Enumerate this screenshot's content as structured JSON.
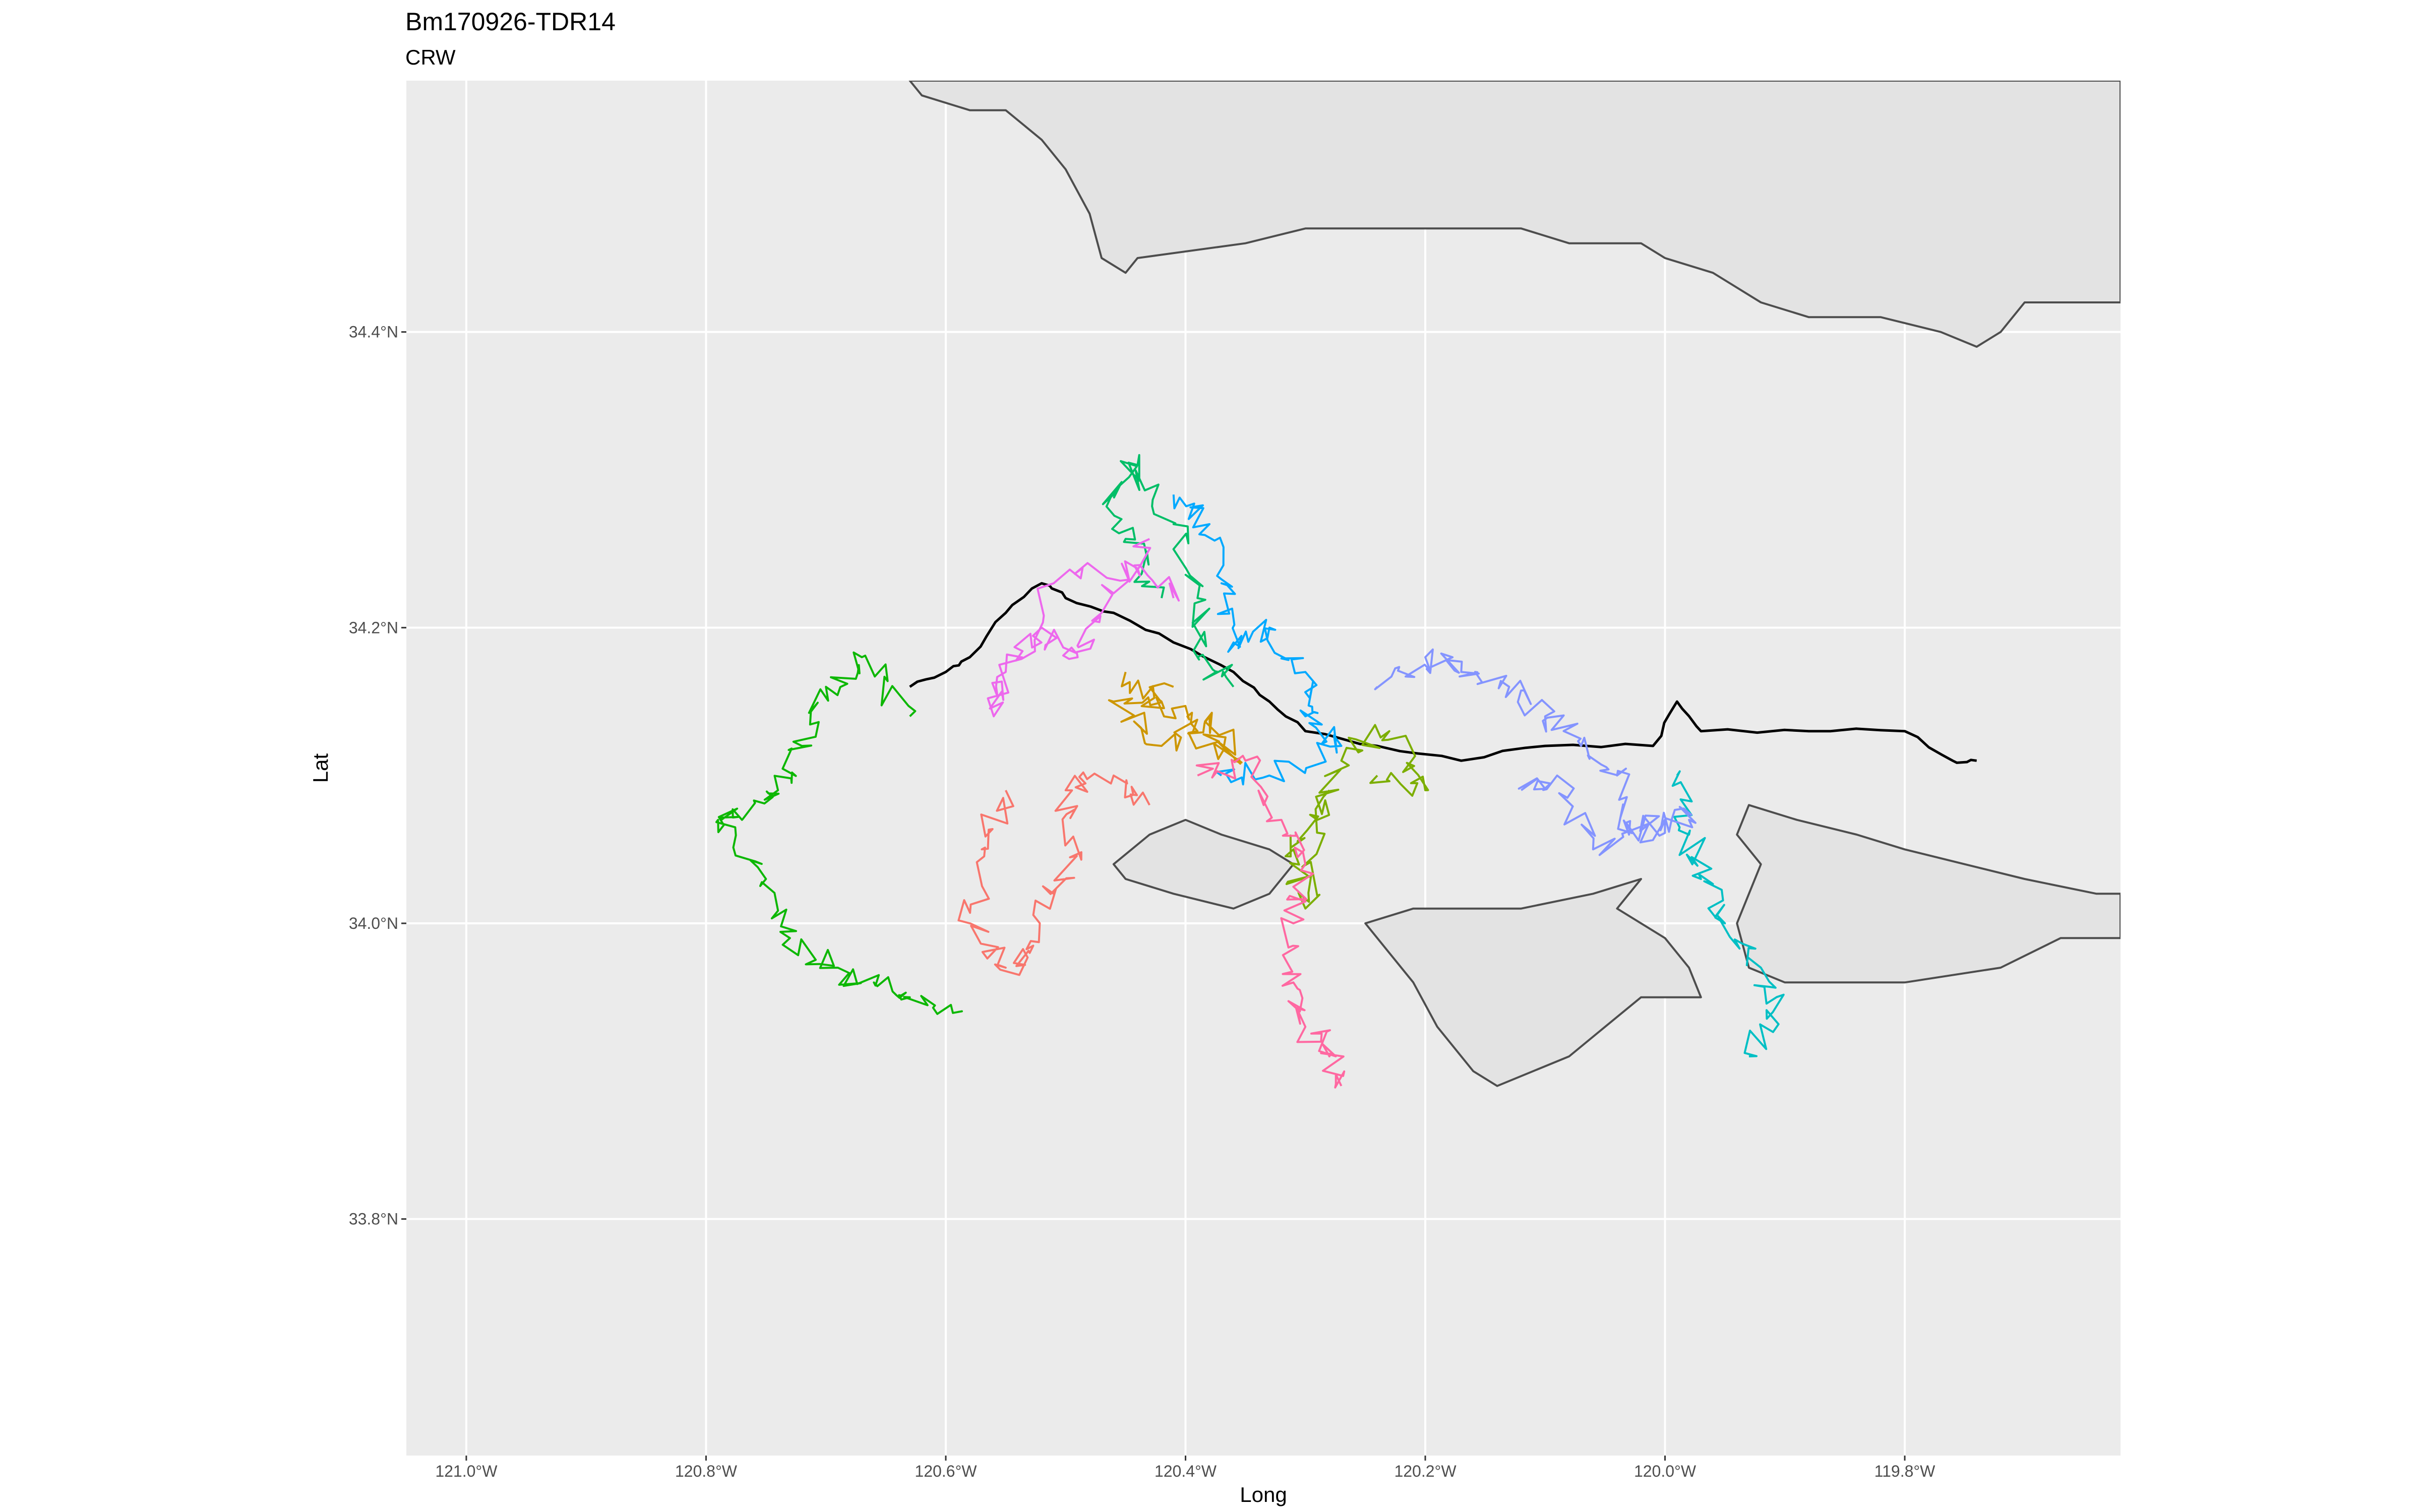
{
  "chart_data": {
    "type": "line",
    "title": "Bm170926-TDR14",
    "subtitle": "CRW",
    "xlabel": "Long",
    "ylabel": "Lat",
    "xlim": [
      -121.05,
      -119.62
    ],
    "ylim": [
      33.64,
      34.57
    ],
    "grid": true,
    "legend": "none",
    "x_ticks": [
      {
        "value": -121.0,
        "label": "121.0°W"
      },
      {
        "value": -120.8,
        "label": "120.8°W"
      },
      {
        "value": -120.6,
        "label": "120.6°W"
      },
      {
        "value": -120.4,
        "label": "120.4°W"
      },
      {
        "value": -120.2,
        "label": "120.2°W"
      },
      {
        "value": -120.0,
        "label": "120.0°W"
      },
      {
        "value": -119.8,
        "label": "119.8°W"
      }
    ],
    "y_ticks": [
      {
        "value": 33.8,
        "label": "33.8°N"
      },
      {
        "value": 34.0,
        "label": "34.0°N"
      },
      {
        "value": 34.2,
        "label": "34.2°N"
      },
      {
        "value": 34.4,
        "label": "34.4°N"
      }
    ],
    "colors": {
      "panel": "#ebebeb",
      "grid": "#ffffff",
      "land_fill": "#e3e3e3",
      "land_stroke": "#4d4d4d",
      "observed_track": "#000000"
    },
    "land": [
      {
        "name": "mainland",
        "points": [
          [
            -120.63,
            34.57
          ],
          [
            -120.62,
            34.56
          ],
          [
            -120.58,
            34.55
          ],
          [
            -120.55,
            34.55
          ],
          [
            -120.52,
            34.53
          ],
          [
            -120.5,
            34.51
          ],
          [
            -120.48,
            34.48
          ],
          [
            -120.47,
            34.45
          ],
          [
            -120.45,
            34.44
          ],
          [
            -120.44,
            34.45
          ],
          [
            -120.35,
            34.46
          ],
          [
            -120.3,
            34.47
          ],
          [
            -120.2,
            34.47
          ],
          [
            -120.12,
            34.47
          ],
          [
            -120.08,
            34.46
          ],
          [
            -120.04,
            34.46
          ],
          [
            -120.02,
            34.46
          ],
          [
            -120.0,
            34.45
          ],
          [
            -119.96,
            34.44
          ],
          [
            -119.92,
            34.42
          ],
          [
            -119.88,
            34.41
          ],
          [
            -119.85,
            34.41
          ],
          [
            -119.82,
            34.41
          ],
          [
            -119.77,
            34.4
          ],
          [
            -119.74,
            34.39
          ],
          [
            -119.72,
            34.4
          ],
          [
            -119.7,
            34.42
          ],
          [
            -119.65,
            34.42
          ],
          [
            -119.62,
            34.42
          ],
          [
            -119.62,
            34.57
          ]
        ]
      },
      {
        "name": "san-miguel-island",
        "points": [
          [
            -120.46,
            34.04
          ],
          [
            -120.43,
            34.06
          ],
          [
            -120.4,
            34.07
          ],
          [
            -120.37,
            34.06
          ],
          [
            -120.33,
            34.05
          ],
          [
            -120.31,
            34.04
          ],
          [
            -120.33,
            34.02
          ],
          [
            -120.36,
            34.01
          ],
          [
            -120.41,
            34.02
          ],
          [
            -120.45,
            34.03
          ]
        ]
      },
      {
        "name": "santa-rosa-island",
        "points": [
          [
            -120.25,
            34.0
          ],
          [
            -120.21,
            34.01
          ],
          [
            -120.12,
            34.01
          ],
          [
            -120.06,
            34.02
          ],
          [
            -120.02,
            34.03
          ],
          [
            -120.04,
            34.01
          ],
          [
            -120.0,
            33.99
          ],
          [
            -119.98,
            33.97
          ],
          [
            -119.97,
            33.95
          ],
          [
            -120.02,
            33.95
          ],
          [
            -120.05,
            33.93
          ],
          [
            -120.08,
            33.91
          ],
          [
            -120.11,
            33.9
          ],
          [
            -120.14,
            33.89
          ],
          [
            -120.16,
            33.9
          ],
          [
            -120.19,
            33.93
          ],
          [
            -120.21,
            33.96
          ],
          [
            -120.23,
            33.98
          ]
        ]
      },
      {
        "name": "santa-cruz-island",
        "points": [
          [
            -119.93,
            34.08
          ],
          [
            -119.89,
            34.07
          ],
          [
            -119.84,
            34.06
          ],
          [
            -119.8,
            34.05
          ],
          [
            -119.75,
            34.04
          ],
          [
            -119.7,
            34.03
          ],
          [
            -119.64,
            34.02
          ],
          [
            -119.62,
            34.02
          ],
          [
            -119.62,
            33.99
          ],
          [
            -119.67,
            33.99
          ],
          [
            -119.72,
            33.97
          ],
          [
            -119.8,
            33.96
          ],
          [
            -119.85,
            33.96
          ],
          [
            -119.9,
            33.96
          ],
          [
            -119.93,
            33.97
          ],
          [
            -119.94,
            34.0
          ],
          [
            -119.92,
            34.04
          ],
          [
            -119.94,
            34.06
          ]
        ]
      }
    ],
    "series": [
      {
        "color": "#000000",
        "seed": 1,
        "points": [
          [
            -119.74,
            34.11
          ],
          [
            -119.76,
            34.11
          ],
          [
            -119.8,
            34.13
          ],
          [
            -119.88,
            34.13
          ],
          [
            -119.97,
            34.13
          ],
          [
            -119.99,
            34.15
          ],
          [
            -120.01,
            34.12
          ],
          [
            -120.1,
            34.12
          ],
          [
            -120.17,
            34.11
          ],
          [
            -120.24,
            34.12
          ],
          [
            -120.3,
            34.13
          ],
          [
            -120.33,
            34.15
          ],
          [
            -120.36,
            34.17
          ],
          [
            -120.41,
            34.19
          ],
          [
            -120.46,
            34.21
          ],
          [
            -120.5,
            34.22
          ],
          [
            -120.52,
            34.23
          ],
          [
            -120.55,
            34.21
          ],
          [
            -120.58,
            34.18
          ],
          [
            -120.6,
            34.17
          ],
          [
            -120.63,
            34.16
          ]
        ]
      },
      {
        "color": "#f8766d",
        "seed": 2,
        "points": [
          [
            -120.43,
            34.08
          ],
          [
            -120.46,
            34.1
          ],
          [
            -120.5,
            34.09
          ],
          [
            -120.49,
            34.05
          ],
          [
            -120.51,
            34.02
          ],
          [
            -120.53,
            33.98
          ],
          [
            -120.55,
            33.97
          ],
          [
            -120.58,
            34.0
          ],
          [
            -120.57,
            34.05
          ],
          [
            -120.55,
            34.09
          ]
        ]
      },
      {
        "color": "#cd9600",
        "seed": 3,
        "points": [
          [
            -120.45,
            34.17
          ],
          [
            -120.42,
            34.15
          ],
          [
            -120.39,
            34.13
          ],
          [
            -120.36,
            34.11
          ],
          [
            -120.38,
            34.14
          ],
          [
            -120.42,
            34.12
          ],
          [
            -120.46,
            34.15
          ],
          [
            -120.41,
            34.16
          ]
        ]
      },
      {
        "color": "#7cae00",
        "seed": 4,
        "points": [
          [
            -120.24,
            34.1
          ],
          [
            -120.2,
            34.09
          ],
          [
            -120.23,
            34.13
          ],
          [
            -120.27,
            34.11
          ],
          [
            -120.29,
            34.07
          ],
          [
            -120.31,
            34.05
          ],
          [
            -120.3,
            34.01
          ],
          [
            -120.28,
            34.09
          ]
        ]
      },
      {
        "color": "#0cb702",
        "seed": 5,
        "points": [
          [
            -120.63,
            34.14
          ],
          [
            -120.67,
            34.18
          ],
          [
            -120.7,
            34.16
          ],
          [
            -120.72,
            34.12
          ],
          [
            -120.74,
            34.09
          ],
          [
            -120.77,
            34.07
          ],
          [
            -120.79,
            34.07
          ],
          [
            -120.75,
            34.03
          ],
          [
            -120.73,
            33.99
          ],
          [
            -120.69,
            33.97
          ],
          [
            -120.66,
            33.96
          ],
          [
            -120.63,
            33.95
          ],
          [
            -120.59,
            33.94
          ]
        ]
      },
      {
        "color": "#00be67",
        "seed": 6,
        "points": [
          [
            -120.42,
            34.22
          ],
          [
            -120.45,
            34.26
          ],
          [
            -120.46,
            34.29
          ],
          [
            -120.44,
            34.31
          ],
          [
            -120.41,
            34.27
          ],
          [
            -120.39,
            34.22
          ],
          [
            -120.39,
            34.18
          ],
          [
            -120.36,
            34.16
          ]
        ]
      },
      {
        "color": "#00bfc4",
        "seed": 7,
        "points": [
          [
            -119.99,
            34.1
          ],
          [
            -119.98,
            34.06
          ],
          [
            -119.97,
            34.03
          ],
          [
            -119.95,
            34.0
          ],
          [
            -119.92,
            33.97
          ],
          [
            -119.91,
            33.94
          ],
          [
            -119.93,
            33.91
          ]
        ]
      },
      {
        "color": "#00a9ff",
        "seed": 8,
        "points": [
          [
            -120.41,
            34.29
          ],
          [
            -120.38,
            34.27
          ],
          [
            -120.37,
            34.23
          ],
          [
            -120.36,
            34.19
          ],
          [
            -120.33,
            34.2
          ],
          [
            -120.3,
            34.17
          ],
          [
            -120.3,
            34.14
          ],
          [
            -120.27,
            34.12
          ],
          [
            -120.33,
            34.1
          ],
          [
            -120.37,
            34.1
          ]
        ]
      },
      {
        "color": "#8494ff",
        "seed": 9,
        "points": [
          [
            -120.24,
            34.16
          ],
          [
            -120.2,
            34.18
          ],
          [
            -120.17,
            34.17
          ],
          [
            -120.13,
            34.16
          ],
          [
            -120.1,
            34.14
          ],
          [
            -120.07,
            34.12
          ],
          [
            -120.04,
            34.1
          ],
          [
            -120.03,
            34.06
          ],
          [
            -120.0,
            34.07
          ],
          [
            -119.98,
            34.07
          ],
          [
            -120.06,
            34.05
          ],
          [
            -120.09,
            34.1
          ],
          [
            -120.12,
            34.09
          ]
        ]
      },
      {
        "color": "#ed68ed",
        "seed": 10,
        "points": [
          [
            -120.43,
            34.26
          ],
          [
            -120.47,
            34.21
          ],
          [
            -120.49,
            34.18
          ],
          [
            -120.52,
            34.2
          ],
          [
            -120.55,
            34.17
          ],
          [
            -120.56,
            34.14
          ],
          [
            -120.51,
            34.23
          ],
          [
            -120.44,
            34.24
          ],
          [
            -120.41,
            34.22
          ]
        ]
      },
      {
        "color": "#ff68a1",
        "seed": 11,
        "points": [
          [
            -120.39,
            34.1
          ],
          [
            -120.35,
            34.11
          ],
          [
            -120.32,
            34.07
          ],
          [
            -120.3,
            34.04
          ],
          [
            -120.31,
            34.0
          ],
          [
            -120.31,
            33.96
          ],
          [
            -120.3,
            33.93
          ],
          [
            -120.28,
            33.91
          ],
          [
            -120.27,
            33.89
          ]
        ]
      }
    ]
  }
}
